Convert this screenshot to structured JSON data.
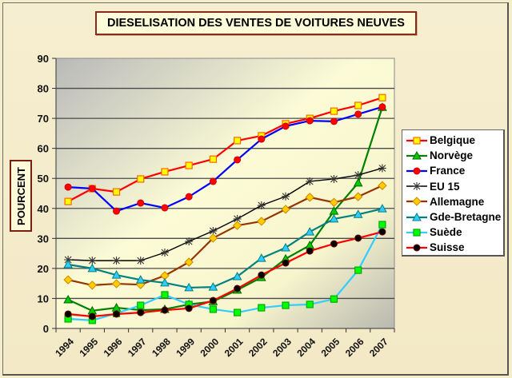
{
  "chart_data": {
    "type": "line",
    "title": "DIESELISATION DES VENTES DE VOITURES NEUVES",
    "xlabel": "",
    "ylabel": "POURCENT",
    "ylim": [
      0,
      90
    ],
    "yticks": [
      "0",
      "10",
      "20",
      "30",
      "40",
      "50",
      "60",
      "70",
      "80",
      "90"
    ],
    "ytick_values": [
      0,
      10,
      20,
      30,
      40,
      50,
      60,
      70,
      80,
      90
    ],
    "categories": [
      "1994",
      "1995",
      "1996",
      "1997",
      "1998",
      "1999",
      "2000",
      "2001",
      "2002",
      "2003",
      "2004",
      "2005",
      "2006",
      "2007"
    ],
    "grid": true,
    "legend_position": "right",
    "series": [
      {
        "name": "Belgique",
        "color": "#ff0000",
        "marker": "square",
        "marker_fill": "#ffff00",
        "marker_stroke": "#ff6600",
        "values": [
          42.3,
          46.6,
          45.5,
          49.8,
          52.2,
          54.3,
          56.4,
          62.6,
          64.2,
          68.2,
          70.0,
          72.4,
          74.3,
          76.9
        ]
      },
      {
        "name": "Norvège",
        "color": "#008000",
        "marker": "triangle",
        "marker_fill": "#00cc00",
        "marker_stroke": "#006600",
        "values": [
          9.6,
          5.9,
          6.9,
          6.1,
          6.4,
          8.0,
          9.0,
          12.8,
          17.0,
          23.2,
          27.7,
          39.1,
          48.5,
          73.7
        ]
      },
      {
        "name": "France",
        "color": "#0000ff",
        "marker": "circle",
        "marker_fill": "#ff0000",
        "marker_stroke": "#cc0000",
        "values": [
          47.1,
          46.6,
          39.1,
          41.8,
          40.2,
          43.9,
          49.0,
          56.2,
          63.1,
          67.4,
          69.2,
          69.0,
          71.4,
          73.8
        ]
      },
      {
        "name": "EU 15",
        "color": "#000000",
        "marker": "star",
        "marker_fill": "#000000",
        "marker_stroke": "#333333",
        "values": [
          22.9,
          22.6,
          22.6,
          22.6,
          25.3,
          29.0,
          32.5,
          36.5,
          41.0,
          44.0,
          49.0,
          49.8,
          51.1,
          53.4
        ]
      },
      {
        "name": "Allemagne",
        "color": "#993300",
        "marker": "diamond",
        "marker_fill": "#ffcc00",
        "marker_stroke": "#cc8800",
        "values": [
          16.2,
          14.4,
          14.9,
          14.6,
          17.6,
          22.1,
          30.1,
          34.3,
          35.7,
          39.7,
          43.7,
          42.0,
          43.9,
          47.6
        ]
      },
      {
        "name": "Gde-Bretagne",
        "color": "#008080",
        "marker": "triangle",
        "marker_fill": "#33ccff",
        "marker_stroke": "#008080",
        "values": [
          21.3,
          20.0,
          17.8,
          16.2,
          15.2,
          13.6,
          13.8,
          17.3,
          23.4,
          26.9,
          32.2,
          36.5,
          38.0,
          39.9
        ]
      },
      {
        "name": "Suède",
        "color": "#33ccff",
        "marker": "square",
        "marker_fill": "#00ff00",
        "marker_stroke": "#00aa00",
        "values": [
          3.2,
          2.7,
          5.0,
          7.7,
          11.2,
          8.0,
          6.4,
          5.3,
          6.9,
          7.7,
          8.0,
          9.8,
          19.4,
          34.6
        ]
      },
      {
        "name": "Suisse",
        "color": "#ff0000",
        "marker": "circle",
        "marker_fill": "#000000",
        "marker_stroke": "#660000",
        "values": [
          4.8,
          4.0,
          4.8,
          5.3,
          6.1,
          6.7,
          9.3,
          13.3,
          17.8,
          21.8,
          25.8,
          28.2,
          30.1,
          32.2
        ]
      }
    ]
  }
}
